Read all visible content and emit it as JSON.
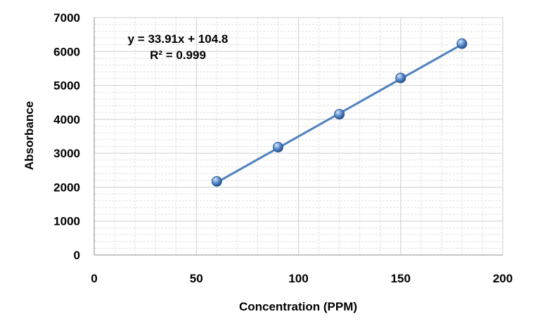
{
  "chart_data": {
    "type": "scatter",
    "xlabel": "Concentration (PPM)",
    "ylabel": "Absorbance",
    "xlim": [
      0,
      200
    ],
    "ylim": [
      0,
      7000
    ],
    "x_ticks": [
      0,
      50,
      100,
      150,
      200
    ],
    "y_ticks": [
      0,
      1000,
      2000,
      3000,
      4000,
      5000,
      6000,
      7000
    ],
    "x_tick_labels": [
      "0",
      "50",
      "100",
      "150",
      "200"
    ],
    "y_tick_labels": [
      "0",
      "1000",
      "2000",
      "3000",
      "4000",
      "5000",
      "6000",
      "7000"
    ],
    "grid": true,
    "series": [
      {
        "x": [
          60,
          90,
          120,
          150,
          180
        ],
        "y": [
          2170,
          3180,
          4150,
          5220,
          6230
        ],
        "color": "#4f81bd"
      }
    ],
    "trendline": {
      "slope": 33.91,
      "intercept": 104.8,
      "color": "#4f81bd"
    },
    "annotations": {
      "equation": "y = 33.91x + 104.8",
      "r_squared": "R² = 0.999"
    }
  }
}
